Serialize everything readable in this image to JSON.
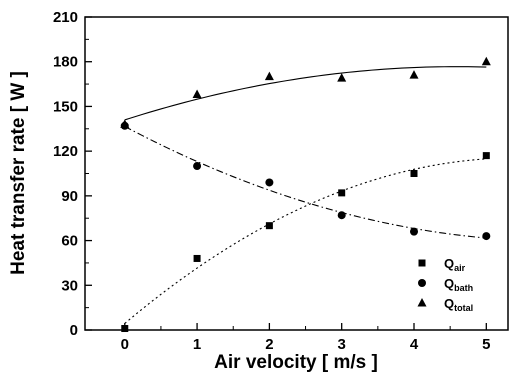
{
  "chart_data": {
    "type": "scatter",
    "xlabel": "Air velocity [ m/s ]",
    "ylabel": "Heat transfer rate [ W ]",
    "xlim": [
      -0.55,
      5.3
    ],
    "ylim": [
      0,
      210
    ],
    "xticks": [
      0,
      1,
      2,
      3,
      4,
      5
    ],
    "yticks": [
      0,
      30,
      60,
      90,
      120,
      150,
      180,
      210
    ],
    "grid": false,
    "legend_position": "bottom-right",
    "series": [
      {
        "name_main": "Q",
        "name_sub": "air",
        "marker": "square",
        "line_style": "dotted",
        "x": [
          0,
          1,
          2,
          3,
          4,
          5
        ],
        "y": [
          1,
          48,
          70,
          92,
          105,
          117
        ]
      },
      {
        "name_main": "Q",
        "name_sub": "bath",
        "marker": "circle",
        "line_style": "dashdot",
        "x": [
          0,
          1,
          2,
          3,
          4,
          5
        ],
        "y": [
          137,
          110,
          99,
          77,
          66,
          63
        ]
      },
      {
        "name_main": "Q",
        "name_sub": "total",
        "marker": "triangle",
        "line_style": "solid",
        "x": [
          0,
          1,
          2,
          3,
          4,
          5
        ],
        "y": [
          138,
          158,
          170,
          169,
          171,
          180
        ]
      }
    ]
  }
}
